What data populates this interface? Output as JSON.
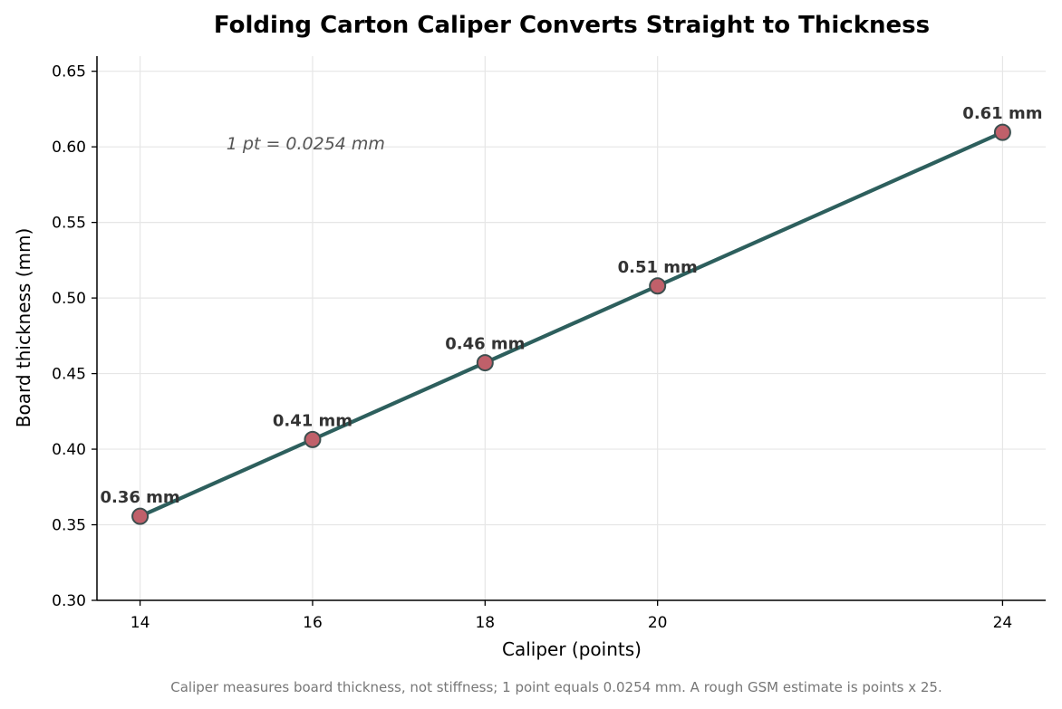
{
  "chart_data": {
    "type": "line",
    "title": "Folding Carton Caliper Converts Straight to Thickness",
    "xlabel": "Caliper (points)",
    "ylabel": "Board thickness (mm)",
    "x": [
      14,
      16,
      18,
      20,
      24
    ],
    "series": [
      {
        "values": [
          0.3556,
          0.4064,
          0.4572,
          0.508,
          0.6096
        ],
        "labels": [
          "0.36 mm",
          "0.41 mm",
          "0.46 mm",
          "0.51 mm",
          "0.61 mm"
        ]
      }
    ],
    "xticks": [
      14,
      16,
      18,
      20,
      24
    ],
    "xtick_labels": [
      "14",
      "16",
      "18",
      "20",
      "24"
    ],
    "yticks": [
      0.3,
      0.35,
      0.4,
      0.45,
      0.5,
      0.55,
      0.6,
      0.65
    ],
    "ytick_labels": [
      "0.30",
      "0.35",
      "0.40",
      "0.45",
      "0.50",
      "0.55",
      "0.60",
      "0.65"
    ],
    "xlim": [
      13.5,
      24.5
    ],
    "ylim": [
      0.3,
      0.66
    ],
    "grid": true,
    "annotation": {
      "text": "1 pt = 0.0254 mm",
      "x": 15,
      "y": 0.6
    },
    "caption": "Caliper measures board thickness, not stiffness; 1 point equals 0.0254 mm. A rough GSM estimate is points x 25."
  },
  "colors": {
    "line": "#2d5f5d",
    "marker_fill": "#c0606a",
    "marker_edge": "#3d4f4f",
    "grid": "#e6e6e6",
    "axis": "#000000"
  }
}
